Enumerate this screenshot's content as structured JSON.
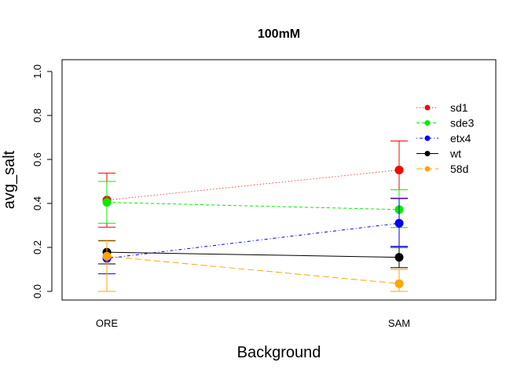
{
  "chart_data": {
    "type": "line",
    "title": "100mM",
    "xlabel": "Background",
    "ylabel": "avg_salt",
    "categories": [
      "ORE",
      "SAM"
    ],
    "ylim": [
      0,
      1
    ],
    "yticks": [
      "0.0",
      "0.2",
      "0.4",
      "0.6",
      "0.8",
      "1.0"
    ],
    "legend_position": "top-right",
    "series": [
      {
        "name": "sd1",
        "color": "#ff0000",
        "line": "dotted",
        "values": [
          0.415,
          0.552
        ],
        "err_low": [
          0.292,
          0.424
        ],
        "err_high": [
          0.538,
          0.684
        ]
      },
      {
        "name": "sde3",
        "color": "#00ee00",
        "line": "dashed",
        "values": [
          0.405,
          0.372
        ],
        "err_low": [
          0.31,
          0.29
        ],
        "err_high": [
          0.5,
          0.462
        ]
      },
      {
        "name": "etx4",
        "color": "#0000ff",
        "line": "dotdash",
        "values": [
          0.15,
          0.31
        ],
        "err_low": [
          0.08,
          0.205
        ],
        "err_high": [
          0.232,
          0.422
        ]
      },
      {
        "name": "wt",
        "color": "#000000",
        "line": "solid",
        "values": [
          0.178,
          0.155
        ],
        "err_low": [
          0.125,
          0.108
        ],
        "err_high": [
          0.23,
          0.2
        ]
      },
      {
        "name": "58d",
        "color": "#ffa500",
        "line": "longdash",
        "values": [
          0.16,
          0.035
        ],
        "err_low": [
          0.0,
          0.0
        ],
        "err_high": [
          0.232,
          0.1
        ]
      }
    ]
  }
}
